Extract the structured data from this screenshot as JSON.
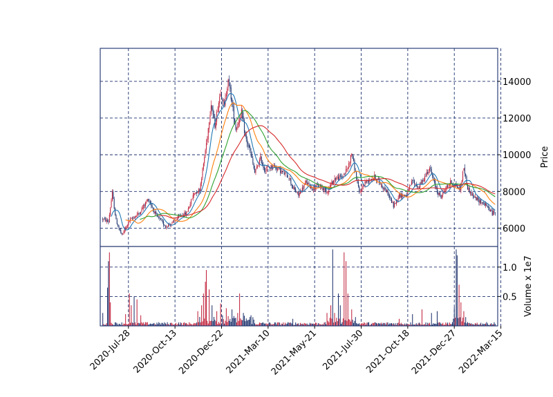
{
  "chart_data": {
    "type": "candlestick",
    "style": {
      "up_color": "#c0203a",
      "down_color": "#1a2f6b",
      "grid_color": "#1a2f6b",
      "frame_color": "#1a2f6b",
      "grid_style": "dashed",
      "grid": true
    },
    "x_tick_labels": [
      "2020-Jul-28",
      "2020-Oct-13",
      "2020-Dec-22",
      "2021-Mar-10",
      "2021-May-21",
      "2021-Jul-30",
      "2021-Oct-18",
      "2021-Dec-27",
      "2022-Mar-15"
    ],
    "price_panel": {
      "ylabel": "Price",
      "ylim": [
        5000,
        15800
      ],
      "y_ticks": [
        6000,
        8000,
        10000,
        12000,
        14000
      ],
      "y_tick_labels": [
        "6000",
        "8000",
        "10000",
        "12000",
        "14000"
      ]
    },
    "volume_panel": {
      "ylabel": "Volume x 1e7",
      "ylim": [
        0,
        1.35
      ],
      "y_ticks": [
        0.5,
        1.0
      ],
      "y_tick_labels": [
        "0.5",
        "1.0"
      ]
    },
    "price_anchors": [
      [
        0,
        6500
      ],
      [
        6,
        6350
      ],
      [
        10,
        7900
      ],
      [
        14,
        6400
      ],
      [
        20,
        5600
      ],
      [
        28,
        6400
      ],
      [
        38,
        6800
      ],
      [
        48,
        7600
      ],
      [
        56,
        6700
      ],
      [
        66,
        6100
      ],
      [
        74,
        6300
      ],
      [
        82,
        6700
      ],
      [
        88,
        6800
      ],
      [
        96,
        7900
      ],
      [
        102,
        8100
      ],
      [
        106,
        9500
      ],
      [
        110,
        11000
      ],
      [
        114,
        12800
      ],
      [
        118,
        11600
      ],
      [
        124,
        13500
      ],
      [
        128,
        12600
      ],
      [
        132,
        14200
      ],
      [
        136,
        12800
      ],
      [
        140,
        11400
      ],
      [
        146,
        12300
      ],
      [
        150,
        11000
      ],
      [
        156,
        10000
      ],
      [
        160,
        9000
      ],
      [
        166,
        9800
      ],
      [
        170,
        9200
      ],
      [
        180,
        9400
      ],
      [
        190,
        9000
      ],
      [
        196,
        8800
      ],
      [
        200,
        8200
      ],
      [
        206,
        7800
      ],
      [
        214,
        8500
      ],
      [
        220,
        8200
      ],
      [
        228,
        8300
      ],
      [
        236,
        8000
      ],
      [
        244,
        8700
      ],
      [
        252,
        8800
      ],
      [
        258,
        9300
      ],
      [
        262,
        10100
      ],
      [
        266,
        9000
      ],
      [
        270,
        7900
      ],
      [
        276,
        8500
      ],
      [
        286,
        8800
      ],
      [
        294,
        8300
      ],
      [
        300,
        7900
      ],
      [
        306,
        7200
      ],
      [
        312,
        7800
      ],
      [
        320,
        7800
      ],
      [
        326,
        8600
      ],
      [
        332,
        8200
      ],
      [
        338,
        8700
      ],
      [
        344,
        9300
      ],
      [
        348,
        8600
      ],
      [
        352,
        8000
      ],
      [
        356,
        7700
      ],
      [
        360,
        8100
      ],
      [
        366,
        8500
      ],
      [
        372,
        8300
      ],
      [
        376,
        8100
      ],
      [
        380,
        9300
      ],
      [
        384,
        8200
      ],
      [
        390,
        7700
      ],
      [
        396,
        7500
      ],
      [
        402,
        7300
      ],
      [
        406,
        7100
      ],
      [
        410,
        6800
      ],
      [
        413,
        6900
      ]
    ],
    "moving_averages": [
      {
        "window": 10,
        "color": "#1f77b4"
      },
      {
        "window": 25,
        "color": "#ff7f0e"
      },
      {
        "window": 40,
        "color": "#2ca02c"
      },
      {
        "window": 60,
        "color": "#d62728"
      }
    ],
    "volume_spikes": [
      [
        0,
        0.22
      ],
      [
        5,
        0.65
      ],
      [
        6,
        1.1
      ],
      [
        7,
        1.25
      ],
      [
        8,
        0.4
      ],
      [
        24,
        0.2
      ],
      [
        28,
        0.55
      ],
      [
        30,
        0.35
      ],
      [
        33,
        0.5
      ],
      [
        36,
        0.45
      ],
      [
        40,
        0.18
      ],
      [
        100,
        0.25
      ],
      [
        104,
        0.35
      ],
      [
        106,
        0.55
      ],
      [
        108,
        0.75
      ],
      [
        109,
        0.95
      ],
      [
        112,
        0.62
      ],
      [
        115,
        0.35
      ],
      [
        120,
        0.25
      ],
      [
        124,
        0.38
      ],
      [
        126,
        0.18
      ],
      [
        130,
        0.3
      ],
      [
        136,
        0.28
      ],
      [
        142,
        0.22
      ],
      [
        144,
        0.55
      ],
      [
        148,
        0.22
      ],
      [
        156,
        0.18
      ],
      [
        200,
        0.12
      ],
      [
        236,
        0.22
      ],
      [
        240,
        0.35
      ],
      [
        242,
        1.3
      ],
      [
        244,
        0.22
      ],
      [
        248,
        0.55
      ],
      [
        250,
        0.35
      ],
      [
        254,
        1.25
      ],
      [
        256,
        1.1
      ],
      [
        258,
        0.55
      ],
      [
        262,
        0.28
      ],
      [
        266,
        0.15
      ],
      [
        312,
        0.12
      ],
      [
        326,
        0.2
      ],
      [
        336,
        0.28
      ],
      [
        346,
        0.22
      ],
      [
        352,
        0.25
      ],
      [
        370,
        0.32
      ],
      [
        372,
        1.3
      ],
      [
        373,
        1.2
      ],
      [
        375,
        0.7
      ],
      [
        377,
        0.4
      ],
      [
        380,
        0.25
      ],
      [
        382,
        0.15
      ]
    ],
    "num_bars": 414
  }
}
